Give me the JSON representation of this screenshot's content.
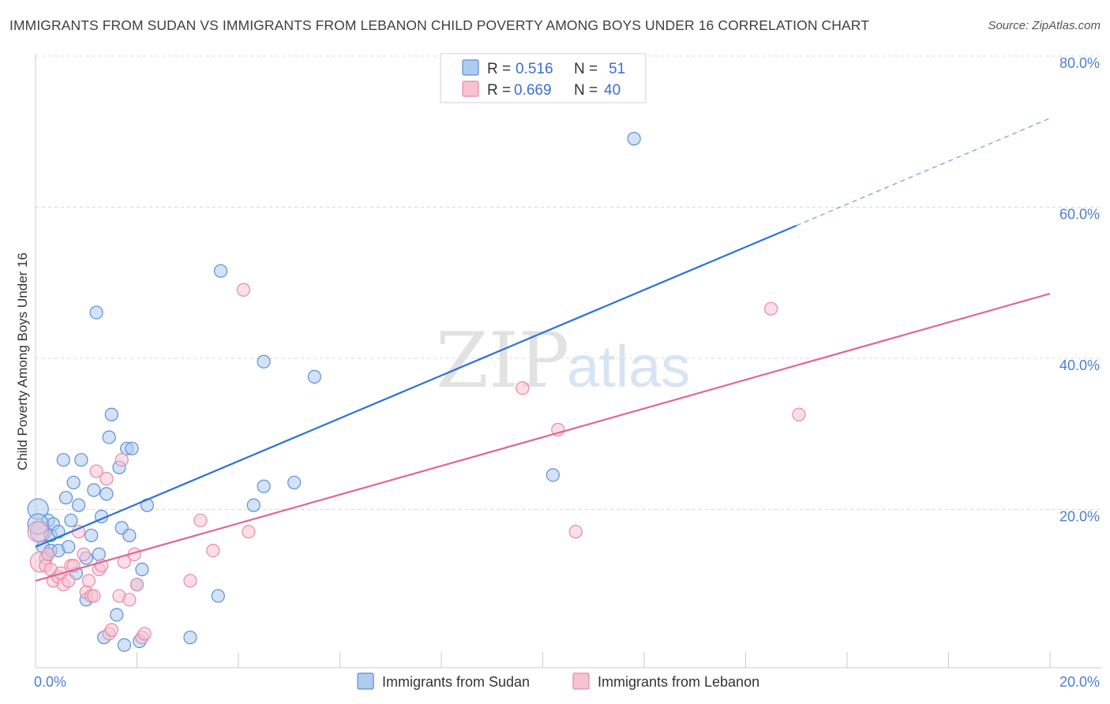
{
  "header": {
    "title": "IMMIGRANTS FROM SUDAN VS IMMIGRANTS FROM LEBANON CHILD POVERTY AMONG BOYS UNDER 16 CORRELATION CHART",
    "source": "Source: ZipAtlas.com"
  },
  "watermark": {
    "zip": "ZIP",
    "atlas": "atlas"
  },
  "colors": {
    "sudan_fill": "#aecbf0",
    "sudan_stroke": "#5b8fd8",
    "sudan_line": "#2f74d0",
    "lebanon_fill": "#f7c2d2",
    "lebanon_stroke": "#e88aa8",
    "lebanon_line": "#e06890",
    "tick_text": "#4a7fd0",
    "grid": "#d8d8d8"
  },
  "legend": {
    "rows": [
      {
        "r_label": "R =",
        "r_value": "0.516",
        "n_label": "N =",
        "n_value": "51"
      },
      {
        "r_label": "R =",
        "r_value": "0.669",
        "n_label": "N =",
        "n_value": "40"
      }
    ]
  },
  "bottom_legend": [
    "Immigrants from Sudan",
    "Immigrants from Lebanon"
  ],
  "chart_data": {
    "type": "scatter",
    "title": "IMMIGRANTS FROM SUDAN VS IMMIGRANTS FROM LEBANON CHILD POVERTY AMONG BOYS UNDER 16 CORRELATION CHART",
    "xlabel": "",
    "ylabel": "Child Poverty Among Boys Under 16",
    "xlim": [
      0,
      20
    ],
    "ylim": [
      0,
      80
    ],
    "x_tick_labels": [
      "0.0%",
      "20.0%"
    ],
    "y_ticks": [
      20,
      40,
      60,
      80
    ],
    "y_tick_labels": [
      "20.0%",
      "40.0%",
      "60.0%",
      "80.0%"
    ],
    "grid": true,
    "series": [
      {
        "name": "Immigrants from Sudan",
        "r": 0.516,
        "n": 51,
        "trend": {
          "x0": 0,
          "y0": 16,
          "x1": 15,
          "y1": 58.5,
          "dashed_to_x": 20,
          "dashed_to_y": 72.7
        },
        "points": [
          [
            0.05,
            21.0
          ],
          [
            0.1,
            18.0
          ],
          [
            0.15,
            16.0
          ],
          [
            0.2,
            14.5
          ],
          [
            0.25,
            19.5
          ],
          [
            0.3,
            17.5
          ],
          [
            0.3,
            15.5
          ],
          [
            0.35,
            19.0
          ],
          [
            0.45,
            15.5
          ],
          [
            0.45,
            18.0
          ],
          [
            0.55,
            27.5
          ],
          [
            0.6,
            22.5
          ],
          [
            0.65,
            16.0
          ],
          [
            0.7,
            19.5
          ],
          [
            0.75,
            24.5
          ],
          [
            0.8,
            12.5
          ],
          [
            0.85,
            21.5
          ],
          [
            0.9,
            27.5
          ],
          [
            1.0,
            9.0
          ],
          [
            1.0,
            14.5
          ],
          [
            1.1,
            17.5
          ],
          [
            1.15,
            23.5
          ],
          [
            1.2,
            47.0
          ],
          [
            1.25,
            15.0
          ],
          [
            1.3,
            20.0
          ],
          [
            1.35,
            4.0
          ],
          [
            1.4,
            23.0
          ],
          [
            1.45,
            30.5
          ],
          [
            1.5,
            33.5
          ],
          [
            1.6,
            7.0
          ],
          [
            1.65,
            26.5
          ],
          [
            1.7,
            18.5
          ],
          [
            1.75,
            3.0
          ],
          [
            1.8,
            29.0
          ],
          [
            1.85,
            17.5
          ],
          [
            1.9,
            29.0
          ],
          [
            2.0,
            11.0
          ],
          [
            2.05,
            3.5
          ],
          [
            2.1,
            13.0
          ],
          [
            2.2,
            21.5
          ],
          [
            3.05,
            4.0
          ],
          [
            3.6,
            9.5
          ],
          [
            3.65,
            52.5
          ],
          [
            4.3,
            21.5
          ],
          [
            4.5,
            40.5
          ],
          [
            4.5,
            24.0
          ],
          [
            5.1,
            24.5
          ],
          [
            5.5,
            38.5
          ],
          [
            10.2,
            25.5
          ],
          [
            11.8,
            70.0
          ],
          [
            0.05,
            19.0
          ]
        ]
      },
      {
        "name": "Immigrants from Lebanon",
        "r": 0.669,
        "n": 40,
        "trend": {
          "x0": 0,
          "y0": 11.5,
          "x1": 20,
          "y1": 49.5
        },
        "points": [
          [
            0.05,
            18.0
          ],
          [
            0.1,
            14.0
          ],
          [
            0.2,
            13.5
          ],
          [
            0.25,
            15.0
          ],
          [
            0.3,
            13.0
          ],
          [
            0.35,
            11.5
          ],
          [
            0.45,
            12.0
          ],
          [
            0.5,
            12.5
          ],
          [
            0.55,
            11.0
          ],
          [
            0.65,
            11.5
          ],
          [
            0.7,
            13.5
          ],
          [
            0.75,
            13.5
          ],
          [
            0.85,
            18.0
          ],
          [
            0.95,
            15.0
          ],
          [
            1.0,
            10.0
          ],
          [
            1.05,
            11.5
          ],
          [
            1.1,
            9.5
          ],
          [
            1.15,
            9.5
          ],
          [
            1.2,
            26.0
          ],
          [
            1.25,
            13.0
          ],
          [
            1.3,
            13.5
          ],
          [
            1.4,
            25.0
          ],
          [
            1.45,
            4.5
          ],
          [
            1.5,
            5.0
          ],
          [
            1.65,
            9.5
          ],
          [
            1.7,
            27.5
          ],
          [
            1.75,
            14.0
          ],
          [
            1.85,
            9.0
          ],
          [
            1.95,
            15.0
          ],
          [
            2.0,
            11.0
          ],
          [
            2.1,
            4.0
          ],
          [
            2.15,
            4.5
          ],
          [
            3.05,
            11.5
          ],
          [
            3.25,
            19.5
          ],
          [
            3.5,
            15.5
          ],
          [
            4.1,
            50.0
          ],
          [
            4.2,
            18.0
          ],
          [
            9.6,
            37.0
          ],
          [
            10.3,
            31.5
          ],
          [
            10.65,
            18.0
          ]
        ]
      }
    ],
    "extra_points_lebanon": [
      [
        14.5,
        47.5
      ],
      [
        15.05,
        33.5
      ]
    ]
  }
}
